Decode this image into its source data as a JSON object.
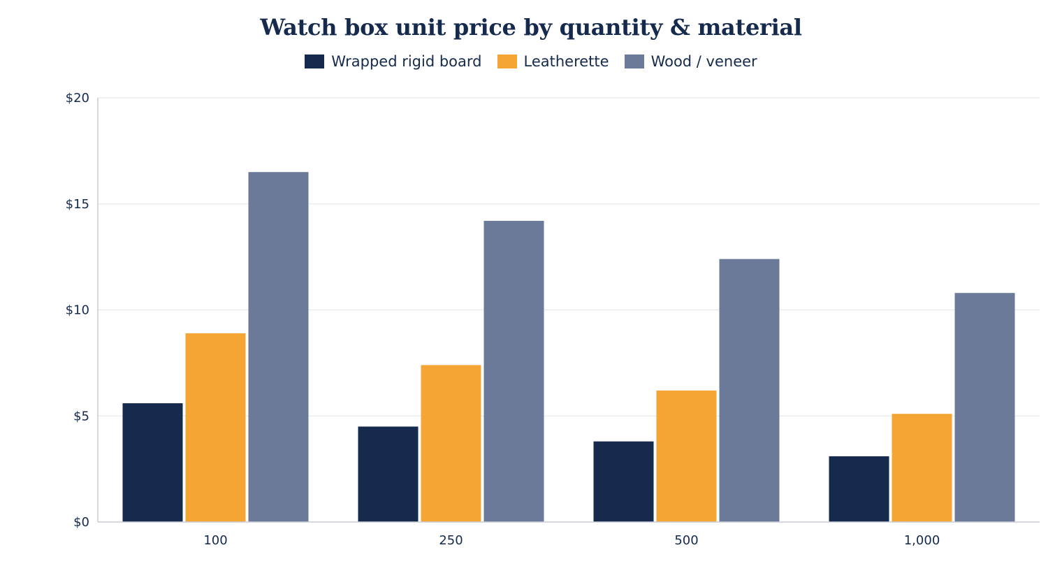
{
  "chart_data": {
    "type": "bar",
    "title": "Watch box unit price by quantity & material",
    "xlabel": "",
    "ylabel": "",
    "categories": [
      "100",
      "250",
      "500",
      "1,000"
    ],
    "series": [
      {
        "name": "Wrapped rigid board",
        "color": "#152a4c",
        "values": [
          5.6,
          4.5,
          3.8,
          3.1
        ]
      },
      {
        "name": "Leatherette",
        "color": "#f4a534",
        "values": [
          8.9,
          7.4,
          6.2,
          5.1
        ]
      },
      {
        "name": "Wood / veneer",
        "color": "#6b7a98",
        "values": [
          16.5,
          14.2,
          12.4,
          10.8
        ]
      }
    ],
    "ylim": [
      0,
      20
    ],
    "yticks": [
      0,
      5,
      10,
      15,
      20
    ],
    "ytick_labels": [
      "$0",
      "$5",
      "$10",
      "$15",
      "$20"
    ],
    "grid": true,
    "legend_position": "top-center"
  }
}
